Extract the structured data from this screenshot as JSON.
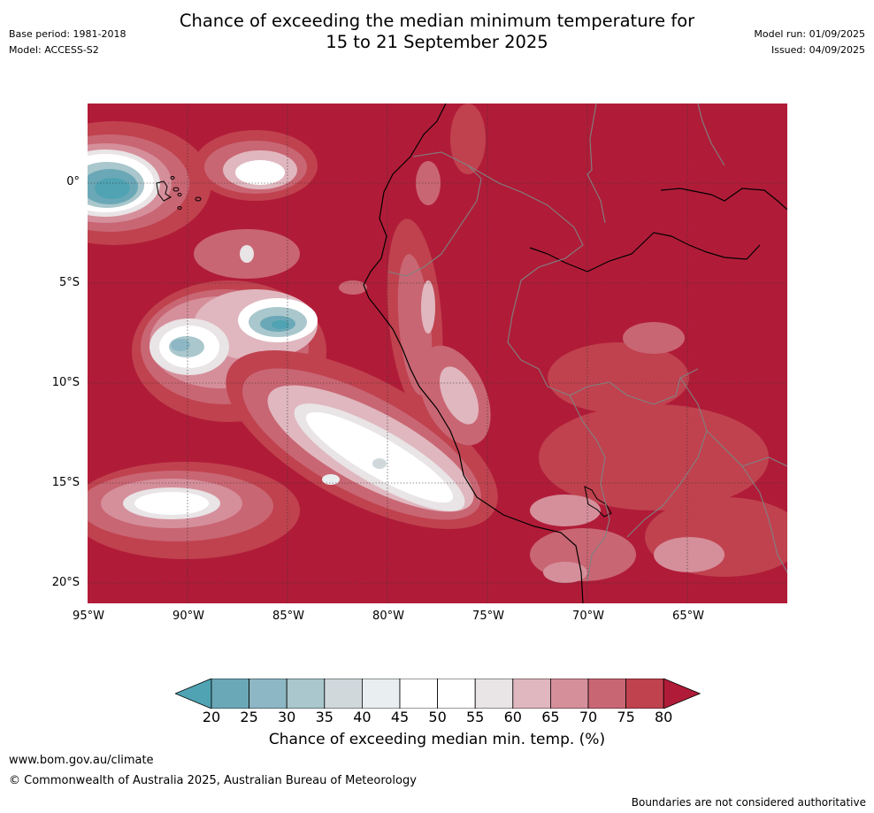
{
  "header": {
    "title_line1": "Chance of exceeding the median minimum temperature for",
    "title_line2": "15 to 21 September 2025",
    "base_period": "Base period: 1981-2018",
    "model": "Model: ACCESS-S2",
    "model_run": "Model run: 01/09/2025",
    "issued": "Issued: 04/09/2025"
  },
  "map": {
    "lat_labels": [
      "0°",
      "5°S",
      "10°S",
      "15°S",
      "20°S"
    ],
    "lon_labels": [
      "95°W",
      "90°W",
      "85°W",
      "80°W",
      "75°W",
      "70°W",
      "65°W"
    ],
    "background_color": "#b01c38"
  },
  "colorbar": {
    "ticks": [
      "20",
      "25",
      "30",
      "35",
      "40",
      "45",
      "50",
      "55",
      "60",
      "65",
      "70",
      "75",
      "80"
    ],
    "colors": [
      "#4fa3b3",
      "#6ba8b7",
      "#8db7c4",
      "#a9c7cc",
      "#d0d8dc",
      "#e9eef1",
      "#ffffff",
      "#ffffff",
      "#e9e4e6",
      "#e0b7bf",
      "#d58f9b",
      "#c96673",
      "#c0424f",
      "#b01c38"
    ],
    "label": "Chance of exceeding median min. temp. (%)"
  },
  "footer": {
    "website": "www.bom.gov.au/climate",
    "copyright": "© Commonwealth of Australia 2025, Australian Bureau of Meteorology",
    "disclaimer": "Boundaries are not considered authoritative"
  }
}
